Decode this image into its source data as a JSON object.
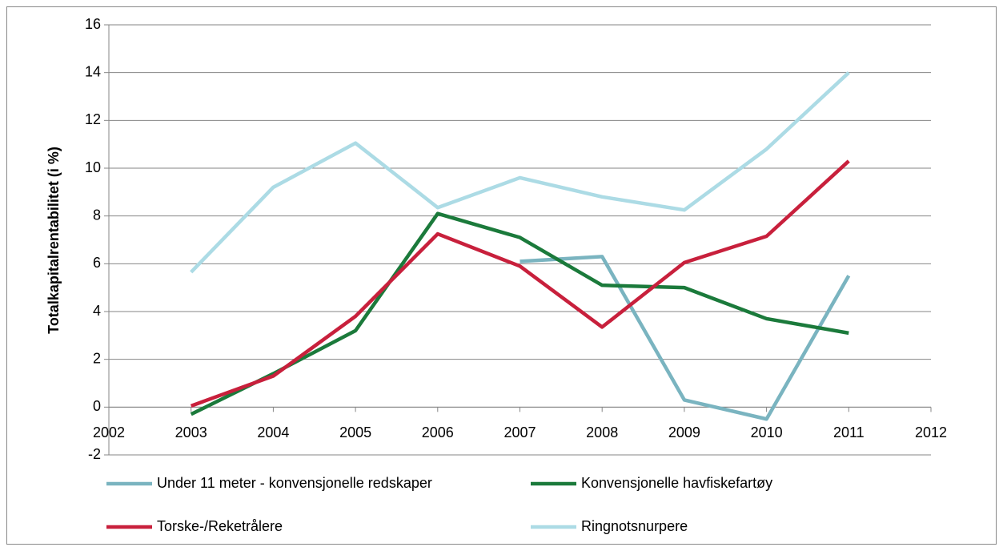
{
  "chart_data": {
    "type": "line",
    "y_label": "Totalkapitalrentabilitet (i %)",
    "x": [
      2003,
      2004,
      2005,
      2006,
      2007,
      2008,
      2009,
      2010,
      2011
    ],
    "xlim": [
      2002,
      2012
    ],
    "xticks": [
      2002,
      2003,
      2004,
      2005,
      2006,
      2007,
      2008,
      2009,
      2010,
      2011,
      2012
    ],
    "ylim": [
      -2,
      16
    ],
    "yticks": [
      -2,
      0,
      2,
      4,
      6,
      8,
      10,
      12,
      14,
      16
    ],
    "grid": true,
    "series": [
      {
        "name": "Under 11 meter - konvensjonelle redskaper",
        "color": "#7ab4c0",
        "values": [
          null,
          null,
          null,
          null,
          6.1,
          6.3,
          0.3,
          -0.5,
          5.5
        ]
      },
      {
        "name": "Konvensjonelle havfiskefartøy",
        "color": "#1b7a3b",
        "values": [
          -0.3,
          1.4,
          3.2,
          8.1,
          7.1,
          5.1,
          5.0,
          3.7,
          3.1
        ]
      },
      {
        "name": "Torske-/Reketrålere",
        "color": "#c8203c",
        "values": [
          0.05,
          1.3,
          3.8,
          7.25,
          5.9,
          3.35,
          6.05,
          7.15,
          10.3
        ]
      },
      {
        "name": "Ringnotsnurpere",
        "color": "#acdbe5",
        "values": [
          5.65,
          9.2,
          11.05,
          8.35,
          9.6,
          8.8,
          8.25,
          10.8,
          14.0
        ]
      }
    ]
  }
}
